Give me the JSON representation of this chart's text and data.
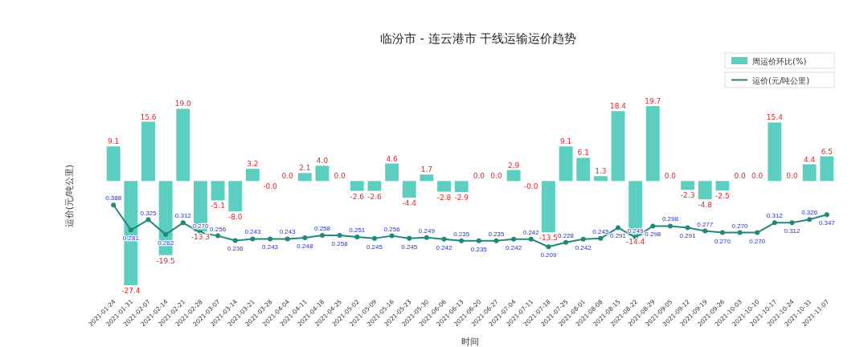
{
  "chart_data": {
    "type": "bar",
    "title": "临汾市 - 连云港市 干线运输运价趋势",
    "xlabel": "时间",
    "ylabel": "运价(元/吨公里)",
    "legend": "top right",
    "tick_labels": "x",
    "categories": [
      "2021-01-24",
      "2021-01-31",
      "2021-02-07",
      "2021-02-14",
      "2021-02-21",
      "2021-02-28",
      "2021-03-07",
      "2021-03-14",
      "2021-03-21",
      "2021-03-28",
      "2021-04-04",
      "2021-04-11",
      "2021-04-18",
      "2021-04-25",
      "2021-05-02",
      "2021-05-09",
      "2021-05-16",
      "2021-05-23",
      "2021-05-30",
      "2021-06-06",
      "2021-06-13",
      "2021-06-20",
      "2021-06-27",
      "2021-07-04",
      "2021-07-11",
      "2021-07-18",
      "2021-07-25",
      "2021-08-01",
      "2021-08-08",
      "2021-08-15",
      "2021-08-22",
      "2021-08-29",
      "2021-09-05",
      "2021-09-12",
      "2021-09-19",
      "2021-09-26",
      "2021-10-03",
      "2021-10-10",
      "2021-10-17",
      "2021-10-24",
      "2021-10-31",
      "2021-11-07"
    ],
    "series": [
      {
        "name": "周运价环比(%)",
        "color": "#5ccfc0",
        "values": [
          9.1,
          -27.4,
          15.6,
          -19.5,
          19.0,
          -13.3,
          -5.1,
          -8.0,
          3.2,
          0.0,
          0.0,
          2.1,
          4.0,
          0.0,
          -2.6,
          -2.6,
          4.6,
          -4.4,
          1.7,
          -2.8,
          -2.9,
          0.0,
          0.0,
          2.9,
          0.0,
          -13.5,
          9.1,
          6.1,
          1.3,
          18.4,
          -14.4,
          19.7,
          0.0,
          -2.3,
          -4.8,
          -2.5,
          0.0,
          0.0,
          15.4,
          0.0,
          4.4,
          6.5
        ],
        "value_labels": [
          "9.1",
          "-27.4",
          "15.6",
          "-19.5",
          "19.0",
          "-13.3",
          "-5.1",
          "-8.0",
          "3.2",
          "-0.0",
          "0.0",
          "2.1",
          "4.0",
          "0.0",
          "-2.6",
          "-2.6",
          "4.6",
          "-4.4",
          "1.7",
          "-2.8",
          "-2.9",
          "0.0",
          "0.0",
          "2.9",
          "-0.0",
          "-13.5",
          "9.1",
          "6.1",
          "1.3",
          "18.4",
          "-14.4",
          "19.7",
          "0.0",
          "-2.3",
          "-4.8",
          "-2.5",
          "0.0",
          "0.0",
          "15.4",
          "0.0",
          "4.4",
          "6.5"
        ]
      },
      {
        "name": "运价(元/吨公里)",
        "type": "line",
        "axis": "y2",
        "color": "#1f8a7a",
        "marker": "circle",
        "values": [
          0.388,
          0.281,
          0.325,
          0.262,
          0.312,
          0.27,
          0.256,
          0.236,
          0.243,
          0.243,
          0.243,
          0.248,
          0.258,
          0.258,
          0.251,
          0.245,
          0.256,
          0.245,
          0.249,
          0.242,
          0.235,
          0.235,
          0.235,
          0.242,
          0.242,
          0.209,
          0.228,
          0.242,
          0.245,
          0.291,
          0.249,
          0.298,
          0.298,
          0.291,
          0.277,
          0.27,
          0.27,
          0.27,
          0.312,
          0.312,
          0.326,
          0.347
        ],
        "value_labels": [
          "0.388",
          "0.281",
          "0.325",
          "0.262",
          "0.312",
          "0.270",
          "0.256",
          "0.236",
          "0.243",
          "0.243",
          "0.243",
          "0.248",
          "0.258",
          "0.258",
          "0.251",
          "0.245",
          "0.256",
          "0.245",
          "0.249",
          "0.242",
          "0.235",
          "0.235",
          "0.235",
          "0.242",
          "0.242",
          "0.209",
          "0.228",
          "0.242",
          "0.245",
          "0.291",
          "0.249",
          "0.298",
          "0.298",
          "0.291",
          "0.277",
          "0.270",
          "0.270",
          "0.270",
          "0.312",
          "0.312",
          "0.326",
          "0.347"
        ]
      }
    ]
  }
}
